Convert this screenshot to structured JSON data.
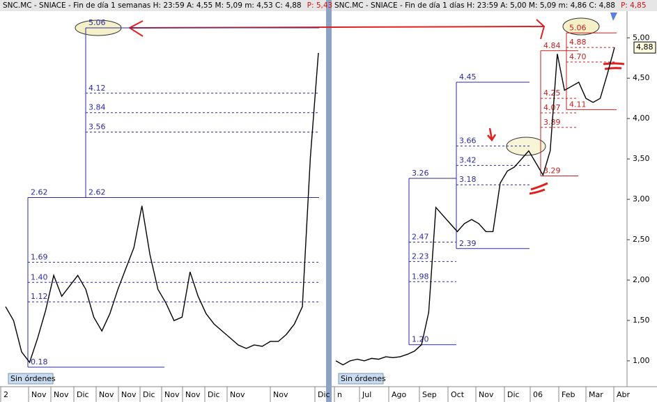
{
  "panels": [
    {
      "header": "SNC.MC - SNIACE - Fin de día 1 semanas  H: 23:59  A: 4,55  M: 5,09  m: 4,53  C: 4,88",
      "header_extra": "P: 5,43",
      "ylim": [
        -0.1,
        5.3
      ],
      "x_labels": [
        "2",
        "Nov",
        "Nov",
        "Dic",
        "Nov",
        "Nov",
        "Dic",
        "Nov",
        "Nov",
        "Dic",
        "Nov",
        "Nov",
        "Dic"
      ],
      "prices": [
        1.05,
        0.85,
        0.4,
        0.25,
        0.6,
        1.0,
        1.5,
        1.2,
        1.35,
        1.5,
        1.3,
        0.9,
        0.7,
        0.95,
        1.3,
        1.6,
        1.9,
        2.5,
        1.8,
        1.3,
        1.1,
        0.85,
        0.9,
        1.55,
        1.2,
        0.95,
        0.8,
        0.7,
        0.6,
        0.5,
        0.45,
        0.5,
        0.48,
        0.55,
        0.55,
        0.65,
        0.8,
        1.05,
        3.2,
        4.7
      ],
      "boxes": [
        {
          "color": "#2a2aa0",
          "levels": [
            {
              "value": 2.62,
              "label": "2.62"
            },
            {
              "value": 1.69,
              "label": "1.69"
            },
            {
              "value": 1.4,
              "label": "1.40"
            },
            {
              "value": 1.12,
              "label": "1.12"
            },
            {
              "value": 0.18,
              "label": "0.18"
            }
          ]
        },
        {
          "color": "#2a2aa0",
          "levels": [
            {
              "value": 5.06,
              "label": "5.06"
            },
            {
              "value": 4.12,
              "label": "4.12"
            },
            {
              "value": 3.84,
              "label": "3.84"
            },
            {
              "value": 3.56,
              "label": "3.56"
            },
            {
              "value": 2.62,
              "label": "2.62"
            }
          ]
        }
      ],
      "button": "Sin órdenes"
    },
    {
      "header": "SNC.MC - SNIACE - Fin de día 1 días  H: 23:59  A: 5,00  M: 5,09  m: 4,86  C: 4,88",
      "header_extra": "P: 4,85",
      "ylim": [
        0.68,
        5.33
      ],
      "yticks": [
        {
          "value": 5,
          "label": "5,00"
        },
        {
          "value": 4.5,
          "label": "4,50"
        },
        {
          "value": 4,
          "label": "4,00"
        },
        {
          "value": 3.5,
          "label": "3,50"
        },
        {
          "value": 3,
          "label": "3,00"
        },
        {
          "value": 2.5,
          "label": "2,50"
        },
        {
          "value": 2,
          "label": "2,00"
        },
        {
          "value": 1.5,
          "label": "1,50"
        },
        {
          "value": 1,
          "label": "1,00"
        }
      ],
      "last_price": {
        "value": 4.88,
        "label": "4,88"
      },
      "x_labels": [
        "n",
        "Jul",
        "Ago",
        "Sep",
        "Oct",
        "Nov",
        "Dic",
        "06",
        "Feb",
        "Mar",
        "Abr"
      ],
      "prices": [
        1.0,
        0.95,
        1.0,
        1.02,
        1.0,
        1.03,
        1.02,
        1.05,
        1.04,
        1.05,
        1.08,
        1.12,
        1.2,
        1.6,
        2.9,
        2.8,
        2.7,
        2.6,
        2.7,
        2.75,
        2.7,
        2.6,
        2.6,
        3.2,
        3.35,
        3.4,
        3.5,
        3.6,
        3.45,
        3.3,
        3.6,
        4.8,
        4.35,
        4.4,
        4.45,
        4.25,
        4.2,
        4.25,
        4.55,
        4.88
      ],
      "boxes": [
        {
          "color": "#2a2aa0",
          "levels": [
            {
              "value": 3.26,
              "label": "3.26"
            },
            {
              "value": 2.47,
              "label": "2.47"
            },
            {
              "value": 2.23,
              "label": "2.23"
            },
            {
              "value": 1.98,
              "label": "1.98"
            },
            {
              "value": 1.2,
              "label": "1.20"
            }
          ]
        },
        {
          "color": "#2a2aa0",
          "levels": [
            {
              "value": 4.45,
              "label": "4.45"
            },
            {
              "value": 3.66,
              "label": "3.66"
            },
            {
              "value": 3.42,
              "label": "3.42"
            },
            {
              "value": 3.18,
              "label": "3.18"
            },
            {
              "value": 2.39,
              "label": "2.39"
            }
          ]
        },
        {
          "color": "#c81e1e",
          "levels": [
            {
              "value": 4.84,
              "label": "4.84"
            },
            {
              "value": 4.25,
              "label": "4.25"
            },
            {
              "value": 4.07,
              "label": "4.07"
            },
            {
              "value": 3.89,
              "label": "3.89"
            },
            {
              "value": 3.29,
              "label": "3.29"
            }
          ]
        },
        {
          "color": "#c81e1e",
          "levels": [
            {
              "value": 5.06,
              "label": "5.06"
            },
            {
              "value": 4.88,
              "label": "4.88"
            },
            {
              "value": 4.7,
              "label": "4.70"
            },
            {
              "value": 4.11,
              "label": "4.11"
            }
          ]
        }
      ],
      "button": "Sin órdenes"
    }
  ]
}
